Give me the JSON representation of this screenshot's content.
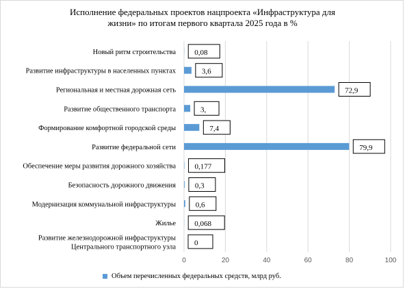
{
  "title": {
    "line1": "Исполнение федеральных проектов нацпроекта «Инфраструктура для",
    "line2": "жизни» по итогам первого квартала 2025 года в %"
  },
  "legend": {
    "label": "Объем перечисленных федеральных средств, млрд руб."
  },
  "colors": {
    "bar": "#5b9bd5",
    "grid": "#d9d9d9"
  },
  "chart_data": {
    "type": "bar",
    "orientation": "horizontal",
    "categories": [
      [
        "Новый ритм строительства"
      ],
      [
        "Развитие инфраструктуры в населенных  пунктах"
      ],
      [
        "Региональная и местная дорожная сеть"
      ],
      [
        "Развитие общественного транспорта"
      ],
      [
        "Формирование комфортной городской среды"
      ],
      [
        "Развитие федеральной сети"
      ],
      [
        "Обеспечение  меры развития дорожного хозяйства"
      ],
      [
        "Безопасность  дорожного движения"
      ],
      [
        "Модернизация коммунальной инфраструктуры"
      ],
      [
        "Жилье"
      ],
      [
        "Развитие железнодорожной инфраструктуры",
        "Центрального транспортного узла"
      ]
    ],
    "series": [
      {
        "name": "Объем  перечисленных  федеральных средств, млрд руб.",
        "values": [
          0.08,
          3.6,
          72.9,
          3,
          7.4,
          79.9,
          0.177,
          0.3,
          0.6,
          0.068,
          0
        ]
      }
    ],
    "data_labels": [
      "0,08",
      "3,6",
      "72,9",
      "3,",
      "7,4",
      "79,9",
      "0,177",
      "0,3",
      "0,6",
      "0,068",
      "0"
    ],
    "xlim": [
      0,
      100
    ],
    "xticks": [
      0,
      20,
      40,
      60,
      80,
      100
    ],
    "xtick_labels": [
      "0",
      "20",
      "40",
      "60",
      "80",
      "100"
    ],
    "grid": true,
    "legend_position": "bottom"
  }
}
